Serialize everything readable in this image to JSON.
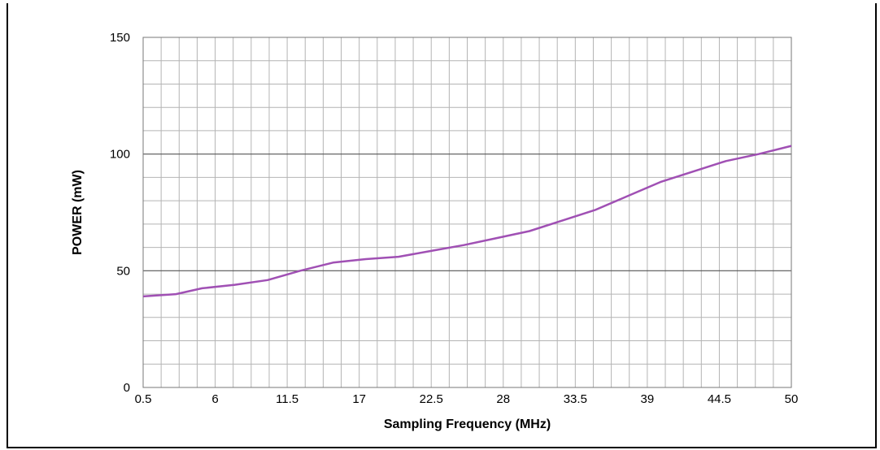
{
  "chart_data": {
    "type": "line",
    "title": "",
    "xlabel": "Sampling Frequency (MHz)",
    "ylabel": "POWER (mW)",
    "xlim": [
      0.5,
      50
    ],
    "ylim": [
      0,
      150
    ],
    "x_ticks": [
      "0.5",
      "6",
      "11.5",
      "17",
      "22.5",
      "28",
      "33.5",
      "39",
      "44.5",
      "50"
    ],
    "y_ticks": [
      "0",
      "50",
      "100",
      "150"
    ],
    "grid": true,
    "series_color": "#a050b4",
    "series": [
      {
        "x": [
          0.5,
          3,
          5,
          7.5,
          10,
          12.5,
          15,
          17.5,
          20,
          22.5,
          25,
          27.5,
          30,
          32.5,
          35,
          37.5,
          40,
          42.5,
          45,
          47.5,
          50
        ],
        "values": [
          39,
          40,
          42.5,
          44,
          46,
          50,
          53.5,
          55,
          56,
          58.5,
          61,
          64,
          67,
          71.5,
          76,
          82,
          88,
          92.5,
          97,
          100,
          103.5
        ]
      }
    ]
  }
}
